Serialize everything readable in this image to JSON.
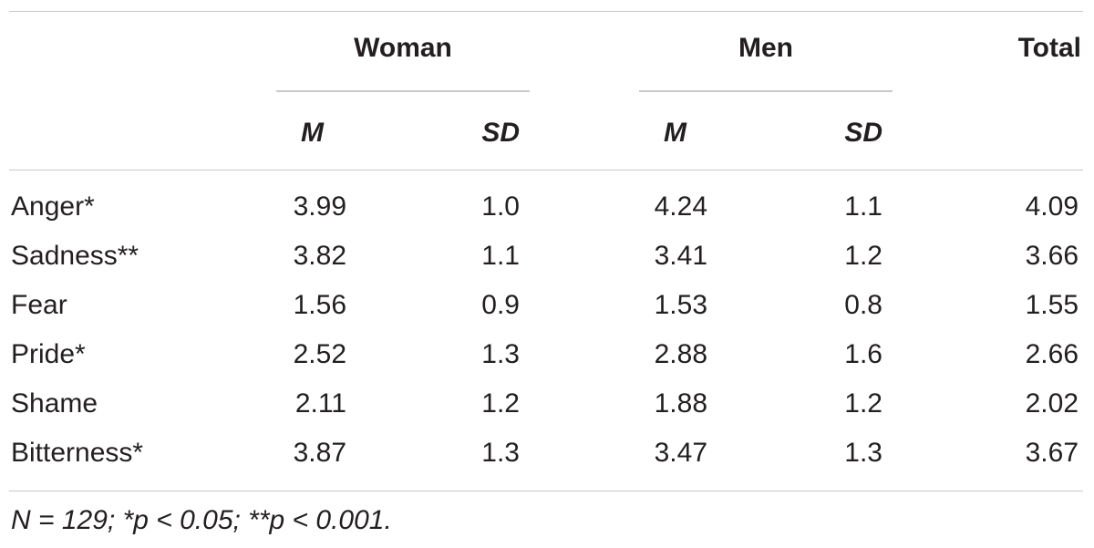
{
  "table": {
    "group_headers": {
      "woman": "Woman",
      "men": "Men",
      "total": "Total"
    },
    "sub_headers": {
      "woman_m": "M",
      "woman_sd": "SD",
      "men_m": "M",
      "men_sd": "SD"
    },
    "rows": [
      {
        "label": "Anger*",
        "woman_m": "3.99",
        "woman_sd": "1.0",
        "men_m": "4.24",
        "men_sd": "1.1",
        "total": "4.09"
      },
      {
        "label": "Sadness**",
        "woman_m": "3.82",
        "woman_sd": "1.1",
        "men_m": "3.41",
        "men_sd": "1.2",
        "total": "3.66"
      },
      {
        "label": "Fear",
        "woman_m": "1.56",
        "woman_sd": "0.9",
        "men_m": "1.53",
        "men_sd": "0.8",
        "total": "1.55"
      },
      {
        "label": "Pride*",
        "woman_m": "2.52",
        "woman_sd": "1.3",
        "men_m": "2.88",
        "men_sd": "1.6",
        "total": "2.66"
      },
      {
        "label": "Shame",
        "woman_m": "2.11",
        "woman_sd": "1.2",
        "men_m": "1.88",
        "men_sd": "1.2",
        "total": "2.02"
      },
      {
        "label": "Bitterness*",
        "woman_m": "3.87",
        "woman_sd": "1.3",
        "men_m": "3.47",
        "men_sd": "1.3",
        "total": "3.67"
      }
    ],
    "note": "N = 129; *p < 0.05; **p < 0.001."
  }
}
